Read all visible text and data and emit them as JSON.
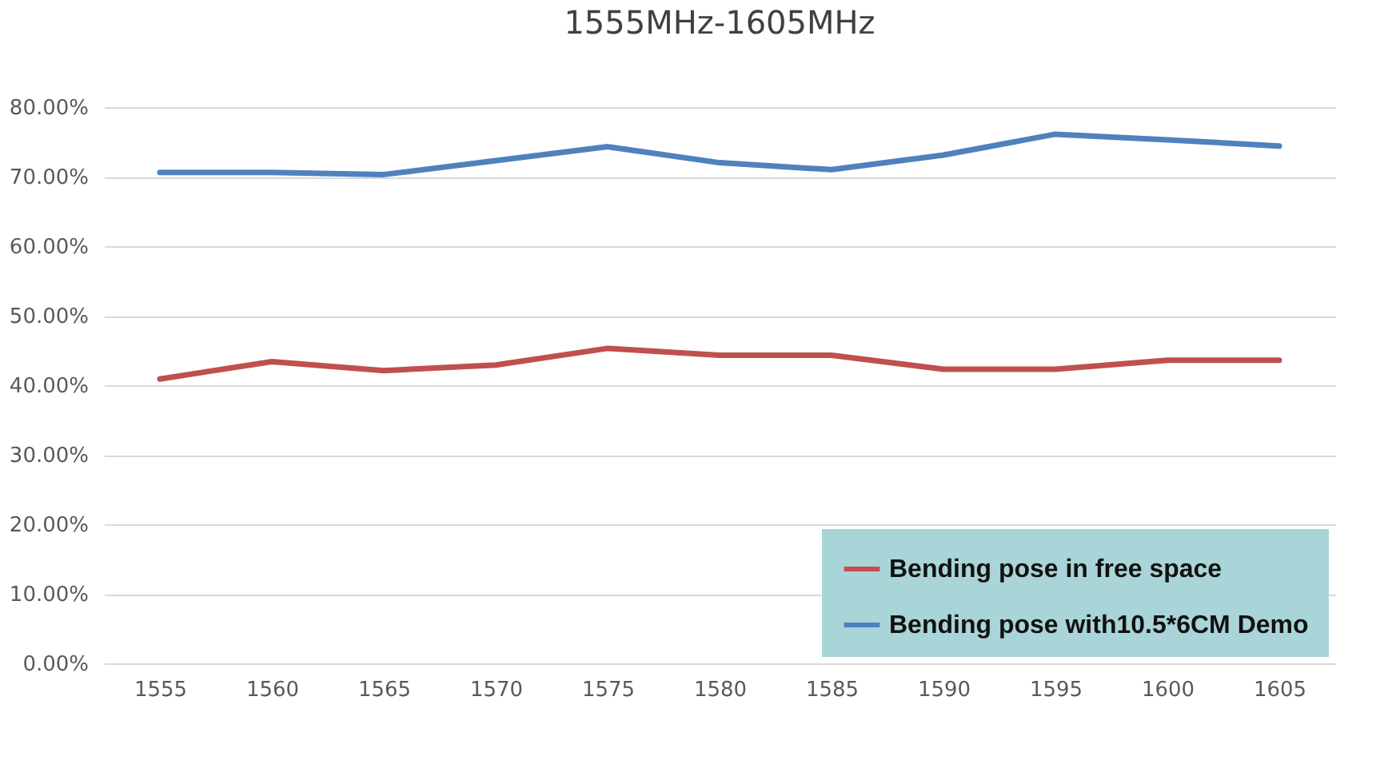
{
  "chart_data": {
    "type": "line",
    "title": "1555MHz-1605MHz",
    "categories": [
      "1555",
      "1560",
      "1565",
      "1570",
      "1575",
      "1580",
      "1585",
      "1590",
      "1595",
      "1600",
      "1605"
    ],
    "series": [
      {
        "name": "Bending pose in free space",
        "color": "#c0504d",
        "values": [
          40.9,
          43.4,
          42.1,
          42.9,
          45.3,
          44.3,
          44.3,
          42.3,
          42.3,
          43.6,
          43.6
        ]
      },
      {
        "name": "Bending pose with10.5*6CM Demo",
        "color": "#4f81bd",
        "values": [
          70.6,
          70.6,
          70.3,
          72.3,
          74.3,
          72,
          71,
          73.1,
          76.1,
          75.3,
          74.4
        ]
      }
    ],
    "ylim": [
      0,
      80
    ],
    "yticks": [
      {
        "value": 0,
        "label": "0.00%"
      },
      {
        "value": 10,
        "label": "10.00%"
      },
      {
        "value": 20,
        "label": "20.00%"
      },
      {
        "value": 30,
        "label": "30.00%"
      },
      {
        "value": 40,
        "label": "40.00%"
      },
      {
        "value": 50,
        "label": "50.00%"
      },
      {
        "value": 60,
        "label": "60.00%"
      },
      {
        "value": 70,
        "label": "70.00%"
      },
      {
        "value": 80,
        "label": "80.00%"
      }
    ],
    "grid": "y",
    "legend": "bottom right",
    "marker": "none",
    "line_style": "solid"
  }
}
